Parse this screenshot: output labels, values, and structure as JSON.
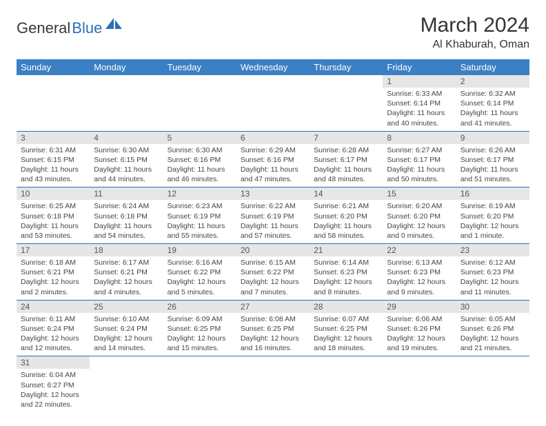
{
  "logo": {
    "text1": "General",
    "text2": "Blue",
    "icon_color": "#2d6fb5"
  },
  "title": "March 2024",
  "location": "Al Khaburah, Oman",
  "header_bg": "#3b7fc4",
  "daynum_bg": "#e6e6e6",
  "border_color": "#2d6fb5",
  "dayNames": [
    "Sunday",
    "Monday",
    "Tuesday",
    "Wednesday",
    "Thursday",
    "Friday",
    "Saturday"
  ],
  "weeks": [
    [
      null,
      null,
      null,
      null,
      null,
      {
        "n": "1",
        "sr": "Sunrise: 6:33 AM",
        "ss": "Sunset: 6:14 PM",
        "dl": "Daylight: 11 hours and 40 minutes."
      },
      {
        "n": "2",
        "sr": "Sunrise: 6:32 AM",
        "ss": "Sunset: 6:14 PM",
        "dl": "Daylight: 11 hours and 41 minutes."
      }
    ],
    [
      {
        "n": "3",
        "sr": "Sunrise: 6:31 AM",
        "ss": "Sunset: 6:15 PM",
        "dl": "Daylight: 11 hours and 43 minutes."
      },
      {
        "n": "4",
        "sr": "Sunrise: 6:30 AM",
        "ss": "Sunset: 6:15 PM",
        "dl": "Daylight: 11 hours and 44 minutes."
      },
      {
        "n": "5",
        "sr": "Sunrise: 6:30 AM",
        "ss": "Sunset: 6:16 PM",
        "dl": "Daylight: 11 hours and 46 minutes."
      },
      {
        "n": "6",
        "sr": "Sunrise: 6:29 AM",
        "ss": "Sunset: 6:16 PM",
        "dl": "Daylight: 11 hours and 47 minutes."
      },
      {
        "n": "7",
        "sr": "Sunrise: 6:28 AM",
        "ss": "Sunset: 6:17 PM",
        "dl": "Daylight: 11 hours and 48 minutes."
      },
      {
        "n": "8",
        "sr": "Sunrise: 6:27 AM",
        "ss": "Sunset: 6:17 PM",
        "dl": "Daylight: 11 hours and 50 minutes."
      },
      {
        "n": "9",
        "sr": "Sunrise: 6:26 AM",
        "ss": "Sunset: 6:17 PM",
        "dl": "Daylight: 11 hours and 51 minutes."
      }
    ],
    [
      {
        "n": "10",
        "sr": "Sunrise: 6:25 AM",
        "ss": "Sunset: 6:18 PM",
        "dl": "Daylight: 11 hours and 53 minutes."
      },
      {
        "n": "11",
        "sr": "Sunrise: 6:24 AM",
        "ss": "Sunset: 6:18 PM",
        "dl": "Daylight: 11 hours and 54 minutes."
      },
      {
        "n": "12",
        "sr": "Sunrise: 6:23 AM",
        "ss": "Sunset: 6:19 PM",
        "dl": "Daylight: 11 hours and 55 minutes."
      },
      {
        "n": "13",
        "sr": "Sunrise: 6:22 AM",
        "ss": "Sunset: 6:19 PM",
        "dl": "Daylight: 11 hours and 57 minutes."
      },
      {
        "n": "14",
        "sr": "Sunrise: 6:21 AM",
        "ss": "Sunset: 6:20 PM",
        "dl": "Daylight: 11 hours and 58 minutes."
      },
      {
        "n": "15",
        "sr": "Sunrise: 6:20 AM",
        "ss": "Sunset: 6:20 PM",
        "dl": "Daylight: 12 hours and 0 minutes."
      },
      {
        "n": "16",
        "sr": "Sunrise: 6:19 AM",
        "ss": "Sunset: 6:20 PM",
        "dl": "Daylight: 12 hours and 1 minute."
      }
    ],
    [
      {
        "n": "17",
        "sr": "Sunrise: 6:18 AM",
        "ss": "Sunset: 6:21 PM",
        "dl": "Daylight: 12 hours and 2 minutes."
      },
      {
        "n": "18",
        "sr": "Sunrise: 6:17 AM",
        "ss": "Sunset: 6:21 PM",
        "dl": "Daylight: 12 hours and 4 minutes."
      },
      {
        "n": "19",
        "sr": "Sunrise: 6:16 AM",
        "ss": "Sunset: 6:22 PM",
        "dl": "Daylight: 12 hours and 5 minutes."
      },
      {
        "n": "20",
        "sr": "Sunrise: 6:15 AM",
        "ss": "Sunset: 6:22 PM",
        "dl": "Daylight: 12 hours and 7 minutes."
      },
      {
        "n": "21",
        "sr": "Sunrise: 6:14 AM",
        "ss": "Sunset: 6:23 PM",
        "dl": "Daylight: 12 hours and 8 minutes."
      },
      {
        "n": "22",
        "sr": "Sunrise: 6:13 AM",
        "ss": "Sunset: 6:23 PM",
        "dl": "Daylight: 12 hours and 9 minutes."
      },
      {
        "n": "23",
        "sr": "Sunrise: 6:12 AM",
        "ss": "Sunset: 6:23 PM",
        "dl": "Daylight: 12 hours and 11 minutes."
      }
    ],
    [
      {
        "n": "24",
        "sr": "Sunrise: 6:11 AM",
        "ss": "Sunset: 6:24 PM",
        "dl": "Daylight: 12 hours and 12 minutes."
      },
      {
        "n": "25",
        "sr": "Sunrise: 6:10 AM",
        "ss": "Sunset: 6:24 PM",
        "dl": "Daylight: 12 hours and 14 minutes."
      },
      {
        "n": "26",
        "sr": "Sunrise: 6:09 AM",
        "ss": "Sunset: 6:25 PM",
        "dl": "Daylight: 12 hours and 15 minutes."
      },
      {
        "n": "27",
        "sr": "Sunrise: 6:08 AM",
        "ss": "Sunset: 6:25 PM",
        "dl": "Daylight: 12 hours and 16 minutes."
      },
      {
        "n": "28",
        "sr": "Sunrise: 6:07 AM",
        "ss": "Sunset: 6:25 PM",
        "dl": "Daylight: 12 hours and 18 minutes."
      },
      {
        "n": "29",
        "sr": "Sunrise: 6:06 AM",
        "ss": "Sunset: 6:26 PM",
        "dl": "Daylight: 12 hours and 19 minutes."
      },
      {
        "n": "30",
        "sr": "Sunrise: 6:05 AM",
        "ss": "Sunset: 6:26 PM",
        "dl": "Daylight: 12 hours and 21 minutes."
      }
    ],
    [
      {
        "n": "31",
        "sr": "Sunrise: 6:04 AM",
        "ss": "Sunset: 6:27 PM",
        "dl": "Daylight: 12 hours and 22 minutes."
      },
      null,
      null,
      null,
      null,
      null,
      null
    ]
  ]
}
